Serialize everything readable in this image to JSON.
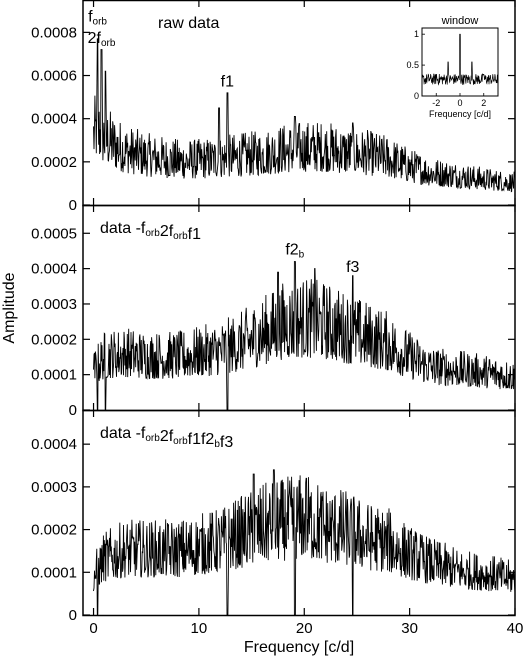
{
  "chart_data": {
    "type": "line",
    "xlabel": "Frequency [c/d]",
    "ylabel": "Amplitude",
    "xlim": [
      -1,
      40
    ],
    "xticks": [
      "0",
      "10",
      "20",
      "30",
      "40"
    ],
    "panels": [
      {
        "label": "raw data",
        "ylim": [
          0,
          0.00095
        ],
        "yticks": [
          "0",
          "0.0002",
          "0.0004",
          "0.0006",
          "0.0008"
        ],
        "annotations": [
          {
            "text": "f",
            "sub": "orb",
            "x": 0.38,
            "y": 0.00085
          },
          {
            "text": "2f",
            "sub": "orb",
            "x": 0.76,
            "y": 0.00075
          },
          {
            "text": "f1",
            "sub": "",
            "x": 12.7,
            "y": 0.00055
          }
        ],
        "series": [
          {
            "knots_x": [
              0,
              0.3,
              1,
              2,
              3,
              5,
              8,
              10,
              12,
              14,
              16,
              18,
              20,
              22,
              24,
              26,
              28,
              30,
              32,
              35,
              38,
              40
            ],
            "knots_y": [
              0.00035,
              0.00038,
              0.00034,
              0.0003,
              0.00027,
              0.00024,
              0.00022,
              0.00022,
              0.00023,
              0.00024,
              0.00025,
              0.00027,
              0.00028,
              0.00028,
              0.00026,
              0.00025,
              0.00023,
              0.00019,
              0.00016,
              0.00014,
              0.00012,
              0.00011
            ],
            "peaks": [
              {
                "x": 0.38,
                "y": 0.00077
              },
              {
                "x": 0.76,
                "y": 0.00072
              },
              {
                "x": 1.14,
                "y": 0.00062
              },
              {
                "x": 11.9,
                "y": 0.00045
              },
              {
                "x": 12.7,
                "y": 0.00052
              },
              {
                "x": 19.1,
                "y": 0.00041
              },
              {
                "x": 24.6,
                "y": 0.00038
              }
            ],
            "dips": []
          }
        ],
        "inset": {
          "title": "window",
          "xlabel": "Frequency [c/d]",
          "xlim": [
            -3.2,
            3.2
          ],
          "ylim": [
            0,
            1.1
          ],
          "xticks": [
            "-2",
            "0",
            "2"
          ],
          "yticks": [
            "0",
            "0.5",
            "1"
          ],
          "peaks": [
            {
              "x": 0,
              "y": 1.0
            },
            {
              "x": -1.0,
              "y": 0.55
            },
            {
              "x": 1.0,
              "y": 0.55
            },
            {
              "x": -2.0,
              "y": 0.35
            },
            {
              "x": 2.0,
              "y": 0.35
            }
          ]
        }
      },
      {
        "label": "data -",
        "label_terms": [
          {
            "text": "f",
            "sub": "orb"
          },
          {
            "text": "2f",
            "sub": "orb"
          },
          {
            "text": "f1",
            "sub": ""
          }
        ],
        "ylim": [
          0,
          0.00058
        ],
        "yticks": [
          "0",
          "0.0001",
          "0.0002",
          "0.0003",
          "0.0004",
          "0.0005"
        ],
        "annotations": [
          {
            "text": "f2",
            "sub": "b",
            "x": 19.1,
            "y": 0.00044
          },
          {
            "text": "f3",
            "sub": "",
            "x": 24.6,
            "y": 0.00039
          }
        ],
        "series": [
          {
            "knots_x": [
              0,
              1,
              3,
              5,
              8,
              10,
              12,
              14,
              16,
              18,
              20,
              22,
              24,
              26,
              28,
              30,
              32,
              35,
              38,
              40
            ],
            "knots_y": [
              0.00012,
              0.00016,
              0.00017,
              0.00016,
              0.00016,
              0.00017,
              0.00018,
              0.0002,
              0.00023,
              0.00026,
              0.00027,
              0.00026,
              0.00024,
              0.00022,
              0.0002,
              0.00016,
              0.00013,
              0.00012,
              0.00011,
              0.0001
            ],
            "peaks": [
              {
                "x": 19.1,
                "y": 0.00042
              },
              {
                "x": 24.6,
                "y": 0.00038
              },
              {
                "x": 21.0,
                "y": 0.0004
              },
              {
                "x": 17.5,
                "y": 0.00039
              }
            ],
            "dips": [
              {
                "x": 0.38,
                "y": 0.0
              },
              {
                "x": 1.14,
                "y": 0.0
              },
              {
                "x": 12.7,
                "y": 0.0
              }
            ]
          }
        ]
      },
      {
        "label": "data -",
        "label_terms": [
          {
            "text": "f",
            "sub": "orb"
          },
          {
            "text": "2f",
            "sub": "orb"
          },
          {
            "text": "f1",
            "sub": ""
          },
          {
            "text": "f2",
            "sub": "b"
          },
          {
            "text": "f3",
            "sub": ""
          }
        ],
        "ylim": [
          0,
          0.00048
        ],
        "yticks": [
          "0",
          "0.0001",
          "0.0002",
          "0.0003",
          "0.0004"
        ],
        "annotations": [],
        "series": [
          {
            "knots_x": [
              0,
              1,
              3,
              5,
              8,
              10,
              12,
              14,
              16,
              18,
              20,
              22,
              24,
              26,
              28,
              30,
              32,
              35,
              38,
              40
            ],
            "knots_y": [
              0.0001,
              0.00014,
              0.00016,
              0.00016,
              0.00016,
              0.00017,
              0.00018,
              0.0002,
              0.00022,
              0.00023,
              0.00024,
              0.00022,
              0.00021,
              0.00019,
              0.00018,
              0.00015,
              0.00013,
              0.00011,
              0.0001,
              9e-05
            ],
            "peaks": [
              {
                "x": 15.2,
                "y": 0.00033
              },
              {
                "x": 17.1,
                "y": 0.00034
              },
              {
                "x": 20.2,
                "y": 0.00032
              }
            ],
            "dips": [
              {
                "x": 0.38,
                "y": 0.0
              },
              {
                "x": 12.7,
                "y": 0.0
              },
              {
                "x": 19.1,
                "y": 0.0
              },
              {
                "x": 24.6,
                "y": 0.0
              }
            ]
          }
        ]
      }
    ]
  }
}
